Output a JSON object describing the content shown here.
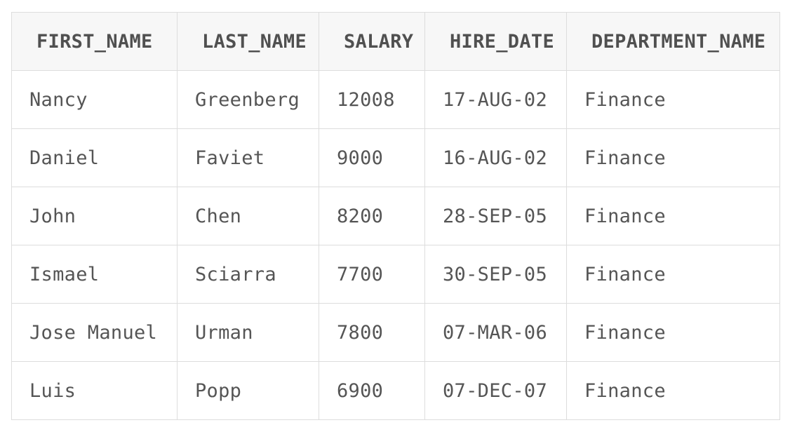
{
  "table": {
    "columns": [
      "FIRST_NAME",
      "LAST_NAME",
      "SALARY",
      "HIRE_DATE",
      "DEPARTMENT_NAME"
    ],
    "rows": [
      [
        "Nancy",
        "Greenberg",
        "12008",
        "17-AUG-02",
        "Finance"
      ],
      [
        "Daniel",
        "Faviet",
        "9000",
        "16-AUG-02",
        "Finance"
      ],
      [
        "John",
        "Chen",
        "8200",
        "28-SEP-05",
        "Finance"
      ],
      [
        "Ismael",
        "Sciarra",
        "7700",
        "30-SEP-05",
        "Finance"
      ],
      [
        "Jose Manuel",
        "Urman",
        "7800",
        "07-MAR-06",
        "Finance"
      ],
      [
        "Luis",
        "Popp",
        "6900",
        "07-DEC-07",
        "Finance"
      ]
    ]
  }
}
